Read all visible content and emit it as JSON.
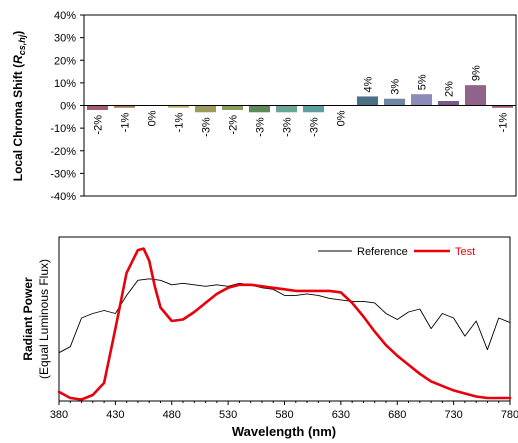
{
  "chart_data": [
    {
      "type": "bar",
      "ylabel_main": "Local Chroma Shift (",
      "ylabel_sym": "R",
      "ylabel_sub": "cs,hj",
      "ylabel_end": ")",
      "ylim": [
        -40,
        40
      ],
      "yticks": [
        -40,
        -30,
        -20,
        -10,
        0,
        10,
        20,
        30,
        40
      ],
      "ytick_labels": [
        "-40%",
        "-30%",
        "-20%",
        "-10%",
        "0%",
        "10%",
        "20%",
        "30%",
        "40%"
      ],
      "grid": false,
      "values": [
        -2,
        -1,
        0,
        -1,
        -3,
        -2,
        -3,
        -3,
        -3,
        0,
        4,
        3,
        5,
        2,
        9,
        -1
      ],
      "value_labels": [
        "-2%",
        "-1%",
        "0%",
        "-1%",
        "-3%",
        "-2%",
        "-3%",
        "-3%",
        "-3%",
        "0%",
        "4%",
        "3%",
        "5%",
        "2%",
        "9%",
        "-1%"
      ],
      "colors": [
        "#a35c6b",
        "#a87b54",
        "#b39a54",
        "#c4b06a",
        "#9c9b5a",
        "#8a9e5c",
        "#5e8a5a",
        "#68a696",
        "#5c9f9c",
        "#6c9cb0",
        "#4d6f88",
        "#6f86a6",
        "#8e8ab8",
        "#7a5a88",
        "#90648a",
        "#9a5a72"
      ]
    },
    {
      "type": "line",
      "ylabel": "Radiant Power",
      "ylabel_sub": "(Equal Luminous Flux)",
      "xlabel": "Wavelength (nm)",
      "xlim": [
        380,
        780
      ],
      "xticks": [
        380,
        430,
        480,
        530,
        580,
        630,
        680,
        730,
        780
      ],
      "legend_position": "top-right",
      "series": [
        {
          "name": "Reference",
          "color": "#000000",
          "x": [
            380,
            390,
            400,
            410,
            420,
            430,
            440,
            450,
            460,
            470,
            480,
            490,
            500,
            510,
            520,
            530,
            540,
            550,
            560,
            570,
            580,
            590,
            600,
            610,
            620,
            630,
            640,
            650,
            660,
            670,
            680,
            690,
            700,
            710,
            720,
            730,
            740,
            750,
            760,
            770,
            780
          ],
          "y": [
            0.32,
            0.36,
            0.55,
            0.58,
            0.6,
            0.58,
            0.7,
            0.8,
            0.81,
            0.8,
            0.77,
            0.78,
            0.77,
            0.76,
            0.77,
            0.76,
            0.78,
            0.77,
            0.75,
            0.74,
            0.7,
            0.7,
            0.71,
            0.7,
            0.68,
            0.67,
            0.66,
            0.66,
            0.65,
            0.58,
            0.54,
            0.59,
            0.61,
            0.48,
            0.58,
            0.55,
            0.43,
            0.53,
            0.34,
            0.55,
            0.52
          ]
        },
        {
          "name": "Test",
          "color": "#e8000b",
          "x": [
            380,
            390,
            400,
            410,
            420,
            430,
            440,
            450,
            455,
            460,
            465,
            470,
            480,
            490,
            500,
            510,
            520,
            530,
            540,
            550,
            560,
            570,
            580,
            590,
            600,
            610,
            620,
            630,
            640,
            650,
            660,
            670,
            680,
            690,
            700,
            710,
            720,
            730,
            740,
            750,
            760,
            770,
            780
          ],
          "y": [
            0.06,
            0.02,
            0.01,
            0.04,
            0.12,
            0.48,
            0.85,
            1.0,
            1.01,
            0.93,
            0.76,
            0.62,
            0.53,
            0.54,
            0.59,
            0.65,
            0.71,
            0.75,
            0.77,
            0.77,
            0.76,
            0.75,
            0.74,
            0.73,
            0.73,
            0.73,
            0.73,
            0.72,
            0.65,
            0.56,
            0.46,
            0.37,
            0.3,
            0.24,
            0.18,
            0.13,
            0.1,
            0.07,
            0.05,
            0.03,
            0.02,
            0.02,
            0.02
          ]
        }
      ]
    }
  ]
}
